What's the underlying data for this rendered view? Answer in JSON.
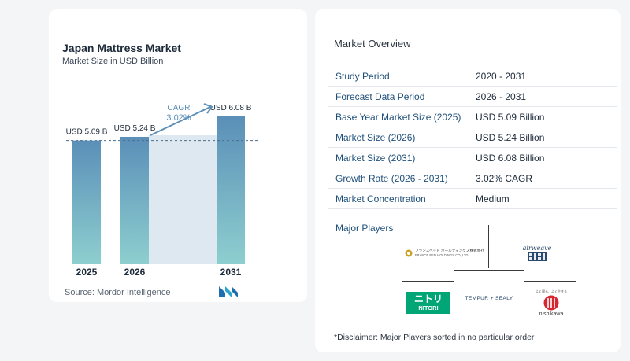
{
  "chart": {
    "title": "Japan Mattress Market",
    "subtitle": "Market Size in USD Billion",
    "source": "Source:  Mordor Intelligence",
    "cagr_label": "CAGR",
    "cagr_value": "3.02%"
  },
  "chart_data": {
    "type": "bar",
    "title": "Japan Mattress Market",
    "subtitle": "Market Size in USD Billion",
    "categories": [
      "2025",
      "2026",
      "2031"
    ],
    "values": [
      5.09,
      5.24,
      6.08
    ],
    "data_labels": [
      "USD 5.09 B",
      "USD 5.24 B",
      "USD 6.08 B"
    ],
    "units": "USD Billion",
    "annotation": {
      "label": "CAGR",
      "value": "3.02%"
    },
    "ylim": [
      0,
      6.5
    ],
    "grid": false,
    "colors": {
      "bar_top": "#5b8fb8",
      "bar_bottom": "#8dcfcf",
      "shade": "#dde8f0"
    }
  },
  "overview": {
    "title": "Market Overview",
    "rows": [
      {
        "label": "Study Period",
        "value": "2020 - 2031"
      },
      {
        "label": "Forecast Data Period",
        "value": "2026 - 2031"
      },
      {
        "label": "Base Year Market Size (2025)",
        "value": "USD 5.09 Billion"
      },
      {
        "label": "Market Size (2026)",
        "value": "USD 5.24 Billion"
      },
      {
        "label": "Market Size (2031)",
        "value": "USD 6.08 Billion"
      },
      {
        "label": "Growth Rate (2026 - 2031)",
        "value": "3.02% CAGR"
      },
      {
        "label": "Market Concentration",
        "value": "Medium"
      }
    ]
  },
  "players": {
    "title": "Major Players",
    "francebed_jp": "フランスベッド ホールディングス株式会社",
    "francebed_en": "FRANCE BED HOLDINGS CO.,LTD.",
    "airweave": "airweave",
    "nitori_jp": "ニトリ",
    "nitori_en": "NITORI",
    "tempur": "TEMPUR + SEALY",
    "nishikawa_tag": "よく寝る、よく生きる",
    "nishikawa": "nishikawa"
  },
  "disclaimer": "*Disclaimer: Major Players sorted in no particular order"
}
